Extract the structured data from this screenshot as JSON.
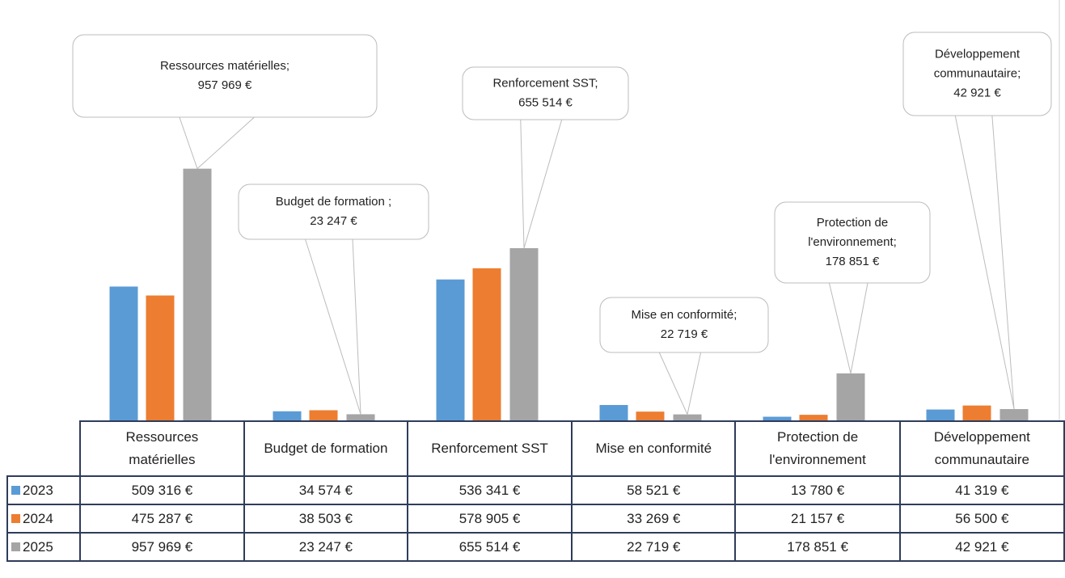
{
  "chart_data": {
    "type": "bar",
    "categories": [
      "Ressources matérielles",
      "Budget de formation",
      "Renforcement SST",
      "Mise en conformité",
      "Protection de l'environnement",
      "Développement communautaire"
    ],
    "series": [
      {
        "name": "2023",
        "color": "#5b9bd5",
        "values": [
          509316,
          34574,
          536341,
          58521,
          13780,
          41319
        ],
        "value_labels": [
          "509 316 €",
          "34 574 €",
          "536 341 €",
          "58 521 €",
          "13 780 €",
          "41 319 €"
        ]
      },
      {
        "name": "2024",
        "color": "#ed7d31",
        "values": [
          475287,
          38503,
          578905,
          33269,
          21157,
          56500
        ],
        "value_labels": [
          "475 287 €",
          "38 503 €",
          "578 905 €",
          "33 269 €",
          "21 157 €",
          "56 500 €"
        ]
      },
      {
        "name": "2025",
        "color": "#a5a5a5",
        "values": [
          957969,
          23247,
          655514,
          22719,
          178851,
          42921
        ],
        "value_labels": [
          "957 969 €",
          "23 247 €",
          "655 514 €",
          "22 719 €",
          "178 851 €",
          "42 921 €"
        ]
      }
    ],
    "annotations": [
      [
        "Ressources matérielles;",
        "957 969 €"
      ],
      [
        "Budget de formation ;",
        "23 247 €"
      ],
      [
        "Renforcement SST;",
        "655 514 €"
      ],
      [
        "Mise en conformité;",
        "22 719 €"
      ],
      [
        "Protection de",
        "l'environnement;",
        "178 851 €"
      ],
      [
        "Développement",
        "communautaire;",
        "42 921 €"
      ]
    ],
    "ylim": [
      0,
      1600000
    ]
  }
}
